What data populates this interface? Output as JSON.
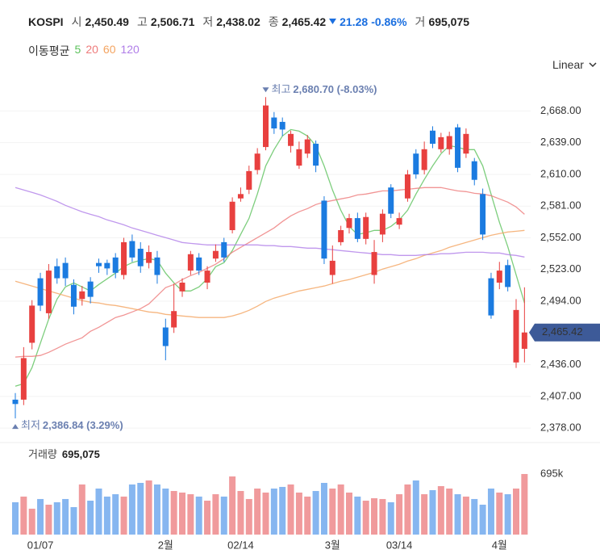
{
  "header": {
    "symbol": "KOSPI",
    "open_label": "시",
    "open": "2,450.49",
    "high_label": "고",
    "high": "2,506.71",
    "low_label": "저",
    "low": "2,438.02",
    "close_label": "종",
    "close": "2,465.42",
    "change": "21.28",
    "change_pct": "-0.86%",
    "volume_label": "거",
    "volume": "695,075"
  },
  "ma_legend": {
    "label": "이동평균"
  },
  "scale_toggle": "Linear",
  "chart_data": {
    "type": "candlestick",
    "categories": [
      null,
      null,
      null,
      "01/07",
      null,
      null,
      null,
      null,
      null,
      null,
      null,
      null,
      null,
      null,
      null,
      null,
      null,
      null,
      "2월",
      null,
      null,
      null,
      null,
      null,
      null,
      null,
      null,
      "02/14",
      null,
      null,
      null,
      null,
      null,
      null,
      null,
      null,
      null,
      null,
      "3월",
      null,
      null,
      null,
      null,
      null,
      null,
      null,
      "03/14",
      null,
      null,
      null,
      null,
      null,
      null,
      null,
      null,
      null,
      null,
      null,
      "4월",
      null,
      null,
      null
    ],
    "open": [
      2404,
      2404,
      2456,
      2515,
      2483,
      2526,
      2529,
      2509,
      2496,
      2512,
      2529,
      2529,
      2534,
      2518,
      2549,
      2542,
      2529,
      2534,
      2470,
      2470,
      2503,
      2522,
      2534,
      2511,
      2533,
      2548,
      2559,
      2588,
      2596,
      2614,
      2635,
      2662,
      2658,
      2636,
      2618,
      2629,
      2638,
      2586,
      2518,
      2548,
      2561,
      2570,
      2551,
      2518,
      2555,
      2598,
      2564,
      2588,
      2629,
      2614,
      2650,
      2633,
      2633,
      2653,
      2629,
      2622,
      2592,
      2515,
      2511,
      2527,
      2438,
      2450.49
    ],
    "high": [
      2410,
      2452,
      2495,
      2520,
      2528,
      2533,
      2534,
      2514,
      2508,
      2516,
      2533,
      2532,
      2538,
      2552,
      2555,
      2548,
      2545,
      2540,
      2478,
      2510,
      2515,
      2540,
      2538,
      2526,
      2546,
      2552,
      2589,
      2598,
      2618,
      2634,
      2680.7,
      2667,
      2662,
      2650,
      2640,
      2646,
      2641,
      2590,
      2545,
      2563,
      2574,
      2575,
      2575,
      2550,
      2578,
      2601,
      2575,
      2614,
      2633,
      2640,
      2654,
      2648,
      2649,
      2656,
      2652,
      2625,
      2597,
      2520,
      2530,
      2532,
      2496,
      2506.71
    ],
    "low": [
      2386.84,
      2399,
      2450,
      2485,
      2478,
      2510,
      2508,
      2482,
      2490,
      2492,
      2520,
      2518,
      2515,
      2514,
      2530,
      2520,
      2524,
      2510,
      2440,
      2465,
      2498,
      2518,
      2518,
      2505,
      2530,
      2530,
      2556,
      2585,
      2592,
      2610,
      2632,
      2647,
      2645,
      2630,
      2615,
      2625,
      2612,
      2528,
      2510,
      2545,
      2556,
      2548,
      2546,
      2510,
      2548,
      2570,
      2560,
      2585,
      2606,
      2610,
      2634,
      2630,
      2628,
      2612,
      2625,
      2600,
      2550,
      2478,
      2505,
      2503,
      2433,
      2438.02
    ],
    "close": [
      2400,
      2442,
      2490,
      2490,
      2522,
      2515,
      2515,
      2489,
      2503,
      2498,
      2526,
      2524,
      2520,
      2548,
      2534,
      2526,
      2539,
      2518,
      2453,
      2485,
      2511,
      2537,
      2522,
      2522,
      2540,
      2534,
      2585,
      2592,
      2613,
      2629,
      2673,
      2652,
      2651,
      2647,
      2633,
      2642,
      2618,
      2533,
      2531,
      2559,
      2570,
      2551,
      2571,
      2539,
      2574,
      2574,
      2570,
      2610,
      2610,
      2633,
      2638,
      2644,
      2645,
      2616,
      2647,
      2605,
      2555,
      2481,
      2522,
      2507,
      2486,
      2465.42
    ],
    "up_color": "#e8403f",
    "down_color": "#1b7be0",
    "ylim": [
      2367,
      2703
    ],
    "yticks": [
      {
        "value": 2668,
        "label": "2,668.00"
      },
      {
        "value": 2639,
        "label": "2,639.00"
      },
      {
        "value": 2610,
        "label": "2,610.00"
      },
      {
        "value": 2581,
        "label": "2,581.00"
      },
      {
        "value": 2552,
        "label": "2,552.00"
      },
      {
        "value": 2523,
        "label": "2,523.00"
      },
      {
        "value": 2494,
        "label": "2,494.00"
      },
      {
        "value": 2436,
        "label": "2,436.00"
      },
      {
        "value": 2407,
        "label": "2,407.00"
      },
      {
        "value": 2378,
        "label": "2,378.00"
      }
    ],
    "grid": true,
    "last_price": {
      "value": 2465.42,
      "label": "2,465.42"
    },
    "high_marker": {
      "text": "최고",
      "label": "2,680.70 (-8.03%)",
      "value": 2680.7
    },
    "low_marker": {
      "text": "최저",
      "label": "2,386.84 (3.29%)",
      "value": 2386.84
    },
    "series": [
      {
        "name": "5",
        "color": "#5cc25c",
        "values": [
          2416.3,
          2418.6,
          2433.3,
          2455.5,
          2477.6,
          2496.0,
          2507.1,
          2510.8,
          2507.1,
          2503.4,
          2509.3,
          2514.5,
          2519.7,
          2525.6,
          2529.3,
          2531.5,
          2532.9,
          2531.5,
          2519.7,
          2510.8,
          2503.4,
          2503.4,
          2507.1,
          2514.5,
          2525.6,
          2529.3,
          2540.3,
          2555.1,
          2569.8,
          2592.0,
          2617.8,
          2632.6,
          2645.1,
          2651.0,
          2649.5,
          2645.1,
          2636.3,
          2617.8,
          2595.7,
          2577.2,
          2562.5,
          2555.1,
          2556.6,
          2558.8,
          2558.8,
          2562.5,
          2568.4,
          2577.2,
          2592.0,
          2605.3,
          2617.8,
          2628.9,
          2636.3,
          2634.8,
          2632.6,
          2632.6,
          2617.8,
          2592.0,
          2566.2,
          2544.0,
          2518.2,
          2492.4
        ]
      },
      {
        "name": "20",
        "color": "#ee7b7b",
        "values": [
          2442.9,
          2443.6,
          2443.6,
          2444.4,
          2447.3,
          2451.0,
          2454.7,
          2457.7,
          2460.6,
          2466.5,
          2470.2,
          2474.6,
          2479.1,
          2481.3,
          2484.2,
          2487.2,
          2491.6,
          2499.0,
          2506.4,
          2509.3,
          2513.8,
          2517.4,
          2520.4,
          2524.1,
          2527.8,
          2532.9,
          2538.8,
          2543.3,
          2547.7,
          2552.1,
          2556.6,
          2561.0,
          2566.9,
          2572.1,
          2575.8,
          2578.7,
          2582.4,
          2584.6,
          2586.1,
          2587.6,
          2589.0,
          2591.2,
          2592.0,
          2593.5,
          2594.9,
          2594.9,
          2595.7,
          2596.4,
          2597.2,
          2597.9,
          2597.9,
          2597.9,
          2596.4,
          2594.9,
          2594.2,
          2592.7,
          2592.0,
          2590.5,
          2587.6,
          2584.6,
          2580.2,
          2573.5
        ]
      },
      {
        "name": "60",
        "color": "#f4a460",
        "values": [
          2512.3,
          2510.1,
          2507.9,
          2505.6,
          2503.4,
          2501.2,
          2499.0,
          2496.8,
          2494.6,
          2493.1,
          2492.4,
          2490.9,
          2490.1,
          2488.7,
          2487.2,
          2485.7,
          2484.2,
          2483.5,
          2482.0,
          2481.3,
          2480.5,
          2479.8,
          2479.1,
          2479.1,
          2479.1,
          2479.1,
          2480.5,
          2482.8,
          2485.7,
          2489.4,
          2493.8,
          2496.8,
          2499.0,
          2501.2,
          2503.4,
          2504.9,
          2506.4,
          2507.9,
          2510.1,
          2512.3,
          2513.8,
          2516.0,
          2518.2,
          2520.4,
          2523.4,
          2525.6,
          2527.8,
          2530.7,
          2532.9,
          2535.9,
          2538.1,
          2540.3,
          2543.3,
          2545.5,
          2547.7,
          2549.9,
          2552.1,
          2554.3,
          2555.8,
          2557.3,
          2558.0,
          2558.8
        ]
      },
      {
        "name": "120",
        "color": "#b07ee8",
        "values": [
          2597.9,
          2595.7,
          2593.5,
          2591.2,
          2588.3,
          2585.3,
          2581.7,
          2578.7,
          2575.8,
          2573.5,
          2571.3,
          2568.4,
          2566.2,
          2563.9,
          2561.0,
          2558.8,
          2556.6,
          2554.3,
          2552.1,
          2549.9,
          2547.7,
          2546.9,
          2546.2,
          2545.5,
          2545.5,
          2545.5,
          2545.5,
          2545.5,
          2545.5,
          2545.5,
          2544.8,
          2544.8,
          2544.0,
          2544.0,
          2543.3,
          2542.5,
          2542.5,
          2541.8,
          2541.1,
          2540.3,
          2539.6,
          2538.8,
          2538.1,
          2537.4,
          2536.6,
          2536.6,
          2535.9,
          2535.9,
          2535.9,
          2536.6,
          2536.6,
          2537.4,
          2537.4,
          2538.1,
          2538.8,
          2538.8,
          2538.8,
          2538.1,
          2538.1,
          2536.6,
          2535.9,
          2534.4
        ]
      }
    ],
    "volume": {
      "title": "거래량",
      "title_value": "695,075",
      "up_color": "#f09a9c",
      "down_color": "#86b6f0",
      "values": [
        371000,
        436000,
        297000,
        408000,
        343000,
        371000,
        408000,
        315000,
        575000,
        389000,
        528000,
        436000,
        463000,
        436000,
        575000,
        593000,
        621000,
        575000,
        528000,
        500000,
        482000,
        463000,
        436000,
        389000,
        463000,
        436000,
        667000,
        500000,
        408000,
        528000,
        482000,
        528000,
        547000,
        575000,
        482000,
        436000,
        500000,
        593000,
        528000,
        575000,
        482000,
        436000,
        389000,
        417000,
        408000,
        371000,
        463000,
        575000,
        621000,
        463000,
        510000,
        556000,
        528000,
        463000,
        436000,
        408000,
        343000,
        528000,
        482000,
        463000,
        528000,
        695075
      ],
      "ylim": [
        0,
        945000
      ],
      "yticks": [
        {
          "value": 695075,
          "label": "695k"
        }
      ]
    }
  }
}
